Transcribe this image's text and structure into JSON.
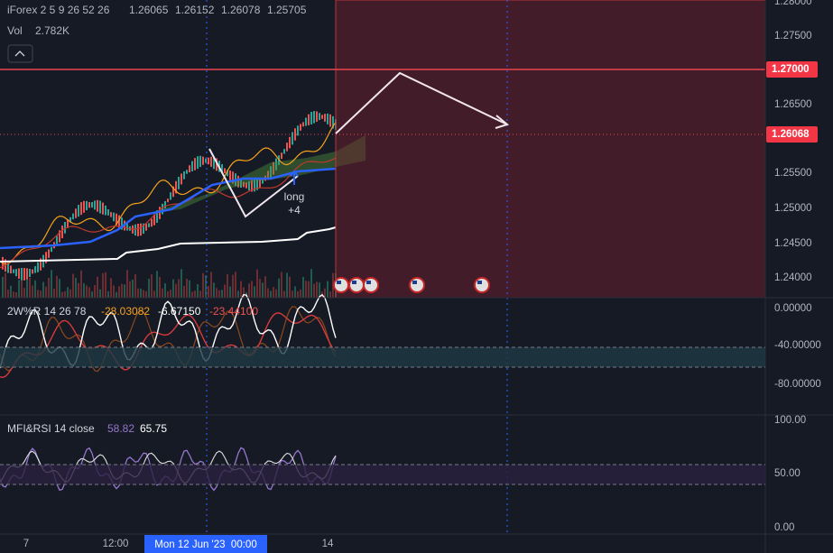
{
  "header": {
    "symbol": "iForex 2 5 9 26 52 26",
    "ohlc": [
      "1.26065",
      "1.26152",
      "1.26078",
      "1.25705"
    ],
    "volume_label": "Vol",
    "volume": "2.782K"
  },
  "price_axis": {
    "ticks": [
      "1.28000",
      "1.27500",
      "1.26500",
      "1.25500",
      "1.25000",
      "1.24500",
      "1.24000"
    ],
    "horizontal_line_label": "1.27000",
    "last_price_label": "1.26068"
  },
  "annotation": {
    "label": "long",
    "value": "+4"
  },
  "williams_r": {
    "title": "2W%R 14 26 78",
    "values": [
      "-28.03082",
      "-6.67150",
      "-23.44100"
    ],
    "ticks": [
      "0.00000",
      "-40.00000",
      "-80.00000"
    ]
  },
  "mfi_rsi": {
    "title": "MFI&RSI 14 close",
    "values": [
      "58.82",
      "65.75"
    ],
    "ticks": [
      "100.00",
      "50.00",
      "0.00"
    ]
  },
  "time_axis": {
    "labels": [
      "7",
      "12:00",
      "14"
    ],
    "crosshair_label": "Mon 12 Jun '23  00:00"
  }
}
